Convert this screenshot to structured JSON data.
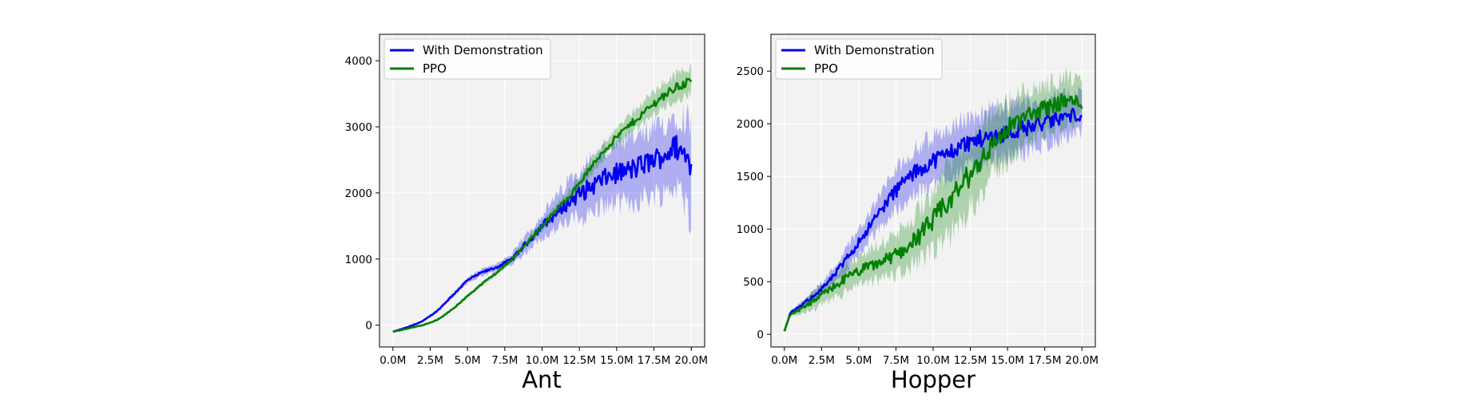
{
  "colors": {
    "with_demo": "#0000ee",
    "ppo": "#008000",
    "plot_bg": "#f2f2f2",
    "grid": "#ffffff"
  },
  "legend_labels": [
    "With Demonstration",
    "PPO"
  ],
  "chart_data": [
    {
      "type": "line",
      "title": "Ant",
      "xlabel": "",
      "ylabel": "",
      "grid": true,
      "legend_position": "top-left",
      "x_ticks": [
        0,
        2.5,
        5,
        7.5,
        10,
        12.5,
        15,
        17.5,
        20
      ],
      "x_tick_labels": [
        "0.0M",
        "2.5M",
        "5.0M",
        "7.5M",
        "10.0M",
        "12.5M",
        "15.0M",
        "17.5M",
        "20.0M"
      ],
      "y_ticks": [
        0,
        1000,
        2000,
        3000,
        4000
      ],
      "y_tick_labels": [
        "0",
        "1000",
        "2000",
        "3000",
        "4000"
      ],
      "xlim": [
        -0.9,
        20.9
      ],
      "ylim": [
        -330,
        4400
      ],
      "x": [
        0,
        1,
        2,
        3,
        4,
        5,
        6,
        7,
        8,
        9,
        10,
        11,
        12,
        13,
        14,
        15,
        16,
        17,
        18,
        19,
        20
      ],
      "series": [
        {
          "name": "With Demonstration",
          "color_key": "with_demo",
          "values": [
            -100,
            -30,
            60,
            220,
            450,
            680,
            800,
            880,
            1000,
            1250,
            1500,
            1700,
            1900,
            2050,
            2200,
            2300,
            2350,
            2450,
            2550,
            2700,
            2450
          ],
          "lower": [
            -110,
            -40,
            45,
            200,
            420,
            640,
            750,
            820,
            920,
            1120,
            1330,
            1450,
            1600,
            1650,
            1800,
            1850,
            1850,
            1950,
            2000,
            2100,
            1650
          ],
          "upper": [
            -90,
            -20,
            75,
            240,
            480,
            720,
            850,
            940,
            1080,
            1380,
            1670,
            1950,
            2250,
            2450,
            2600,
            2700,
            2800,
            2900,
            3000,
            3200,
            3100
          ]
        },
        {
          "name": "PPO",
          "color_key": "ppo",
          "values": [
            -100,
            -50,
            0,
            80,
            240,
            440,
            630,
            800,
            1000,
            1250,
            1500,
            1750,
            2000,
            2300,
            2600,
            2850,
            3050,
            3250,
            3450,
            3600,
            3700
          ],
          "lower": [
            -110,
            -60,
            -10,
            65,
            220,
            415,
            600,
            765,
            955,
            1195,
            1430,
            1670,
            1900,
            2190,
            2480,
            2720,
            2900,
            3080,
            3270,
            3410,
            3480
          ],
          "upper": [
            -90,
            -40,
            10,
            95,
            260,
            465,
            660,
            835,
            1045,
            1305,
            1570,
            1830,
            2100,
            2410,
            2720,
            2980,
            3200,
            3420,
            3630,
            3790,
            3950
          ]
        }
      ]
    },
    {
      "type": "line",
      "title": "Hopper",
      "xlabel": "",
      "ylabel": "",
      "grid": true,
      "legend_position": "top-left",
      "x_ticks": [
        0,
        2.5,
        5,
        7.5,
        10,
        12.5,
        15,
        17.5,
        20
      ],
      "x_tick_labels": [
        "0.0M",
        "2.5M",
        "5.0M",
        "7.5M",
        "10.0M",
        "12.5M",
        "15.0M",
        "17.5M",
        "20.0M"
      ],
      "y_ticks": [
        0,
        500,
        1000,
        1500,
        2000,
        2500
      ],
      "y_tick_labels": [
        "0",
        "500",
        "1000",
        "1500",
        "2000",
        "2500"
      ],
      "xlim": [
        -0.9,
        20.9
      ],
      "ylim": [
        -120,
        2850
      ],
      "x": [
        0,
        0.4,
        1,
        2,
        3,
        4,
        5,
        6,
        7,
        8,
        9,
        10,
        11,
        12,
        13,
        14,
        15,
        16,
        17,
        18,
        19,
        20
      ],
      "series": [
        {
          "name": "With Demonstration",
          "color_key": "with_demo",
          "values": [
            30,
            200,
            260,
            370,
            500,
            680,
            880,
            1080,
            1280,
            1450,
            1560,
            1650,
            1720,
            1800,
            1850,
            1880,
            1920,
            1950,
            1990,
            2030,
            2070,
            2100
          ],
          "lower": [
            25,
            180,
            230,
            320,
            430,
            580,
            760,
            940,
            1100,
            1250,
            1340,
            1420,
            1500,
            1560,
            1610,
            1640,
            1690,
            1720,
            1780,
            1830,
            1880,
            1900
          ],
          "upper": [
            35,
            220,
            290,
            420,
            570,
            780,
            1000,
            1220,
            1460,
            1650,
            1780,
            1880,
            1950,
            2030,
            2080,
            2120,
            2150,
            2180,
            2200,
            2240,
            2260,
            2280
          ]
        },
        {
          "name": "PPO",
          "color_key": "ppo",
          "values": [
            30,
            190,
            230,
            320,
            420,
            520,
            600,
            660,
            720,
            800,
            930,
            1080,
            1250,
            1430,
            1620,
            1800,
            1950,
            2050,
            2120,
            2180,
            2220,
            2200
          ],
          "lower": [
            25,
            170,
            190,
            240,
            310,
            390,
            460,
            500,
            550,
            600,
            680,
            780,
            920,
            1100,
            1300,
            1500,
            1650,
            1780,
            1880,
            1950,
            2000,
            2050
          ],
          "upper": [
            35,
            210,
            270,
            400,
            530,
            650,
            740,
            820,
            900,
            1000,
            1170,
            1380,
            1580,
            1760,
            1940,
            2080,
            2220,
            2280,
            2340,
            2400,
            2450,
            2400
          ]
        }
      ]
    }
  ]
}
